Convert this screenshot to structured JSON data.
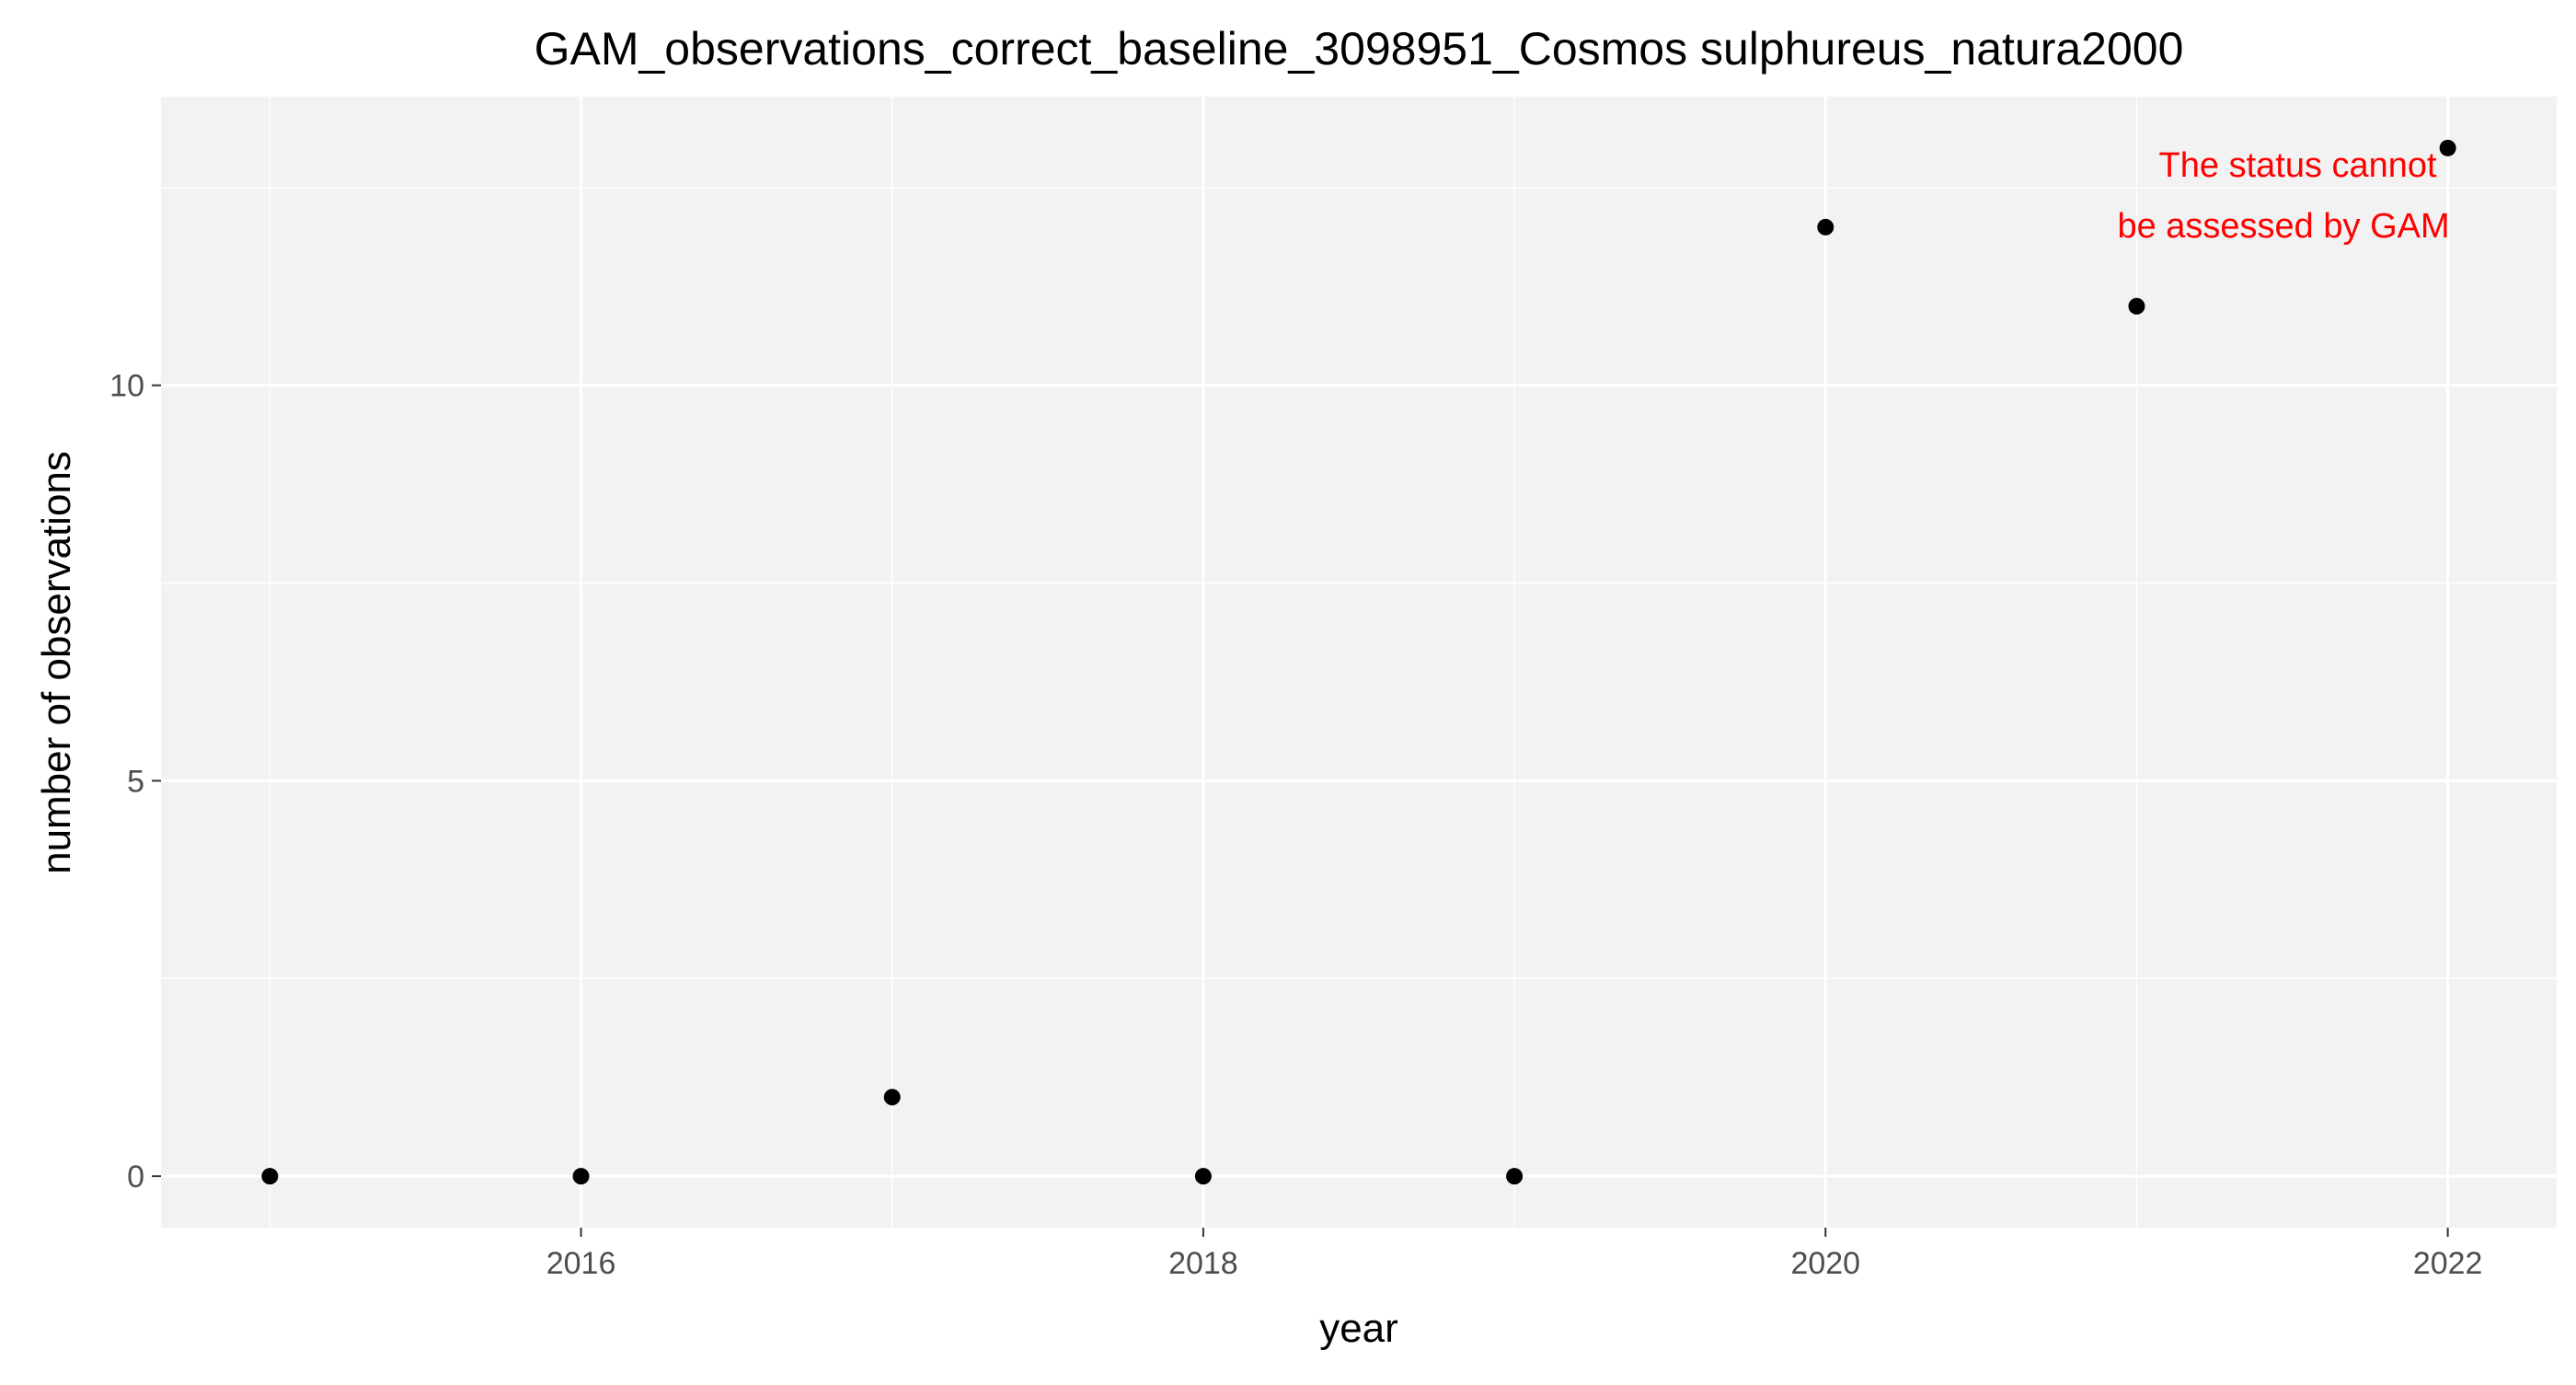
{
  "chart_data": {
    "type": "scatter",
    "title": "GAM_observations_correct_baseline_3098951_Cosmos sulphureus_natura2000",
    "xlabel": "year",
    "ylabel": "number of observations",
    "x": [
      2015,
      2016,
      2017,
      2018,
      2019,
      2020,
      2021,
      2022
    ],
    "y": [
      0,
      0,
      1,
      0,
      0,
      12,
      11,
      13
    ],
    "xlim": [
      2014.65,
      2022.35
    ],
    "ylim": [
      -0.65,
      13.65
    ],
    "x_ticks": [
      2016,
      2018,
      2020,
      2022
    ],
    "x_tick_labels": [
      "2016",
      "2018",
      "2020",
      "2022"
    ],
    "y_ticks": [
      0,
      5,
      10
    ],
    "y_tick_labels": [
      "0",
      "5",
      "10"
    ],
    "x_minor_ticks": [
      2015,
      2017,
      2019,
      2021
    ],
    "y_minor_ticks": [
      2.5,
      7.5,
      12.5
    ],
    "grid": true,
    "point_color": "#000000",
    "panel_background": "#f2f2f2",
    "grid_color": "#ffffff",
    "annotation": {
      "lines": [
        "The status cannot",
        "be assessed by GAM"
      ],
      "color": "#ff0000",
      "anchor": "top-right"
    }
  }
}
